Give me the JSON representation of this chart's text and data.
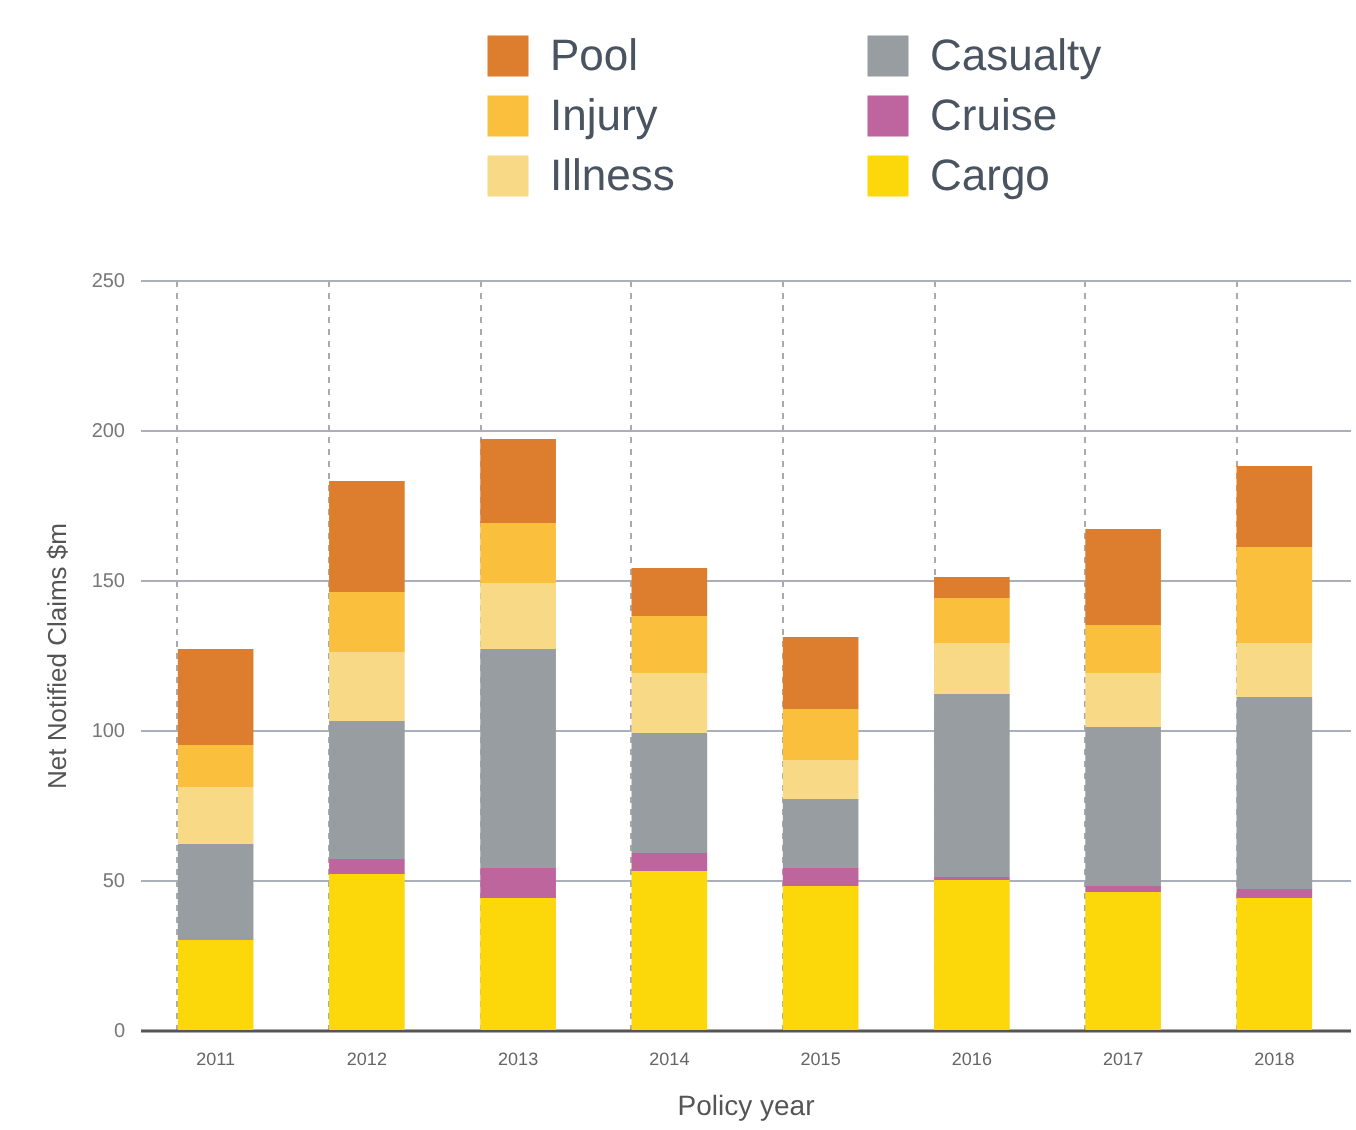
{
  "chart_data": {
    "type": "bar",
    "stacked": true,
    "xlabel": "Policy year",
    "ylabel": "Net Notified Claims $m",
    "categories": [
      "2011",
      "2012",
      "2013",
      "2014",
      "2015",
      "2016",
      "2017",
      "2018"
    ],
    "series": [
      {
        "name": "Cargo",
        "color": "#fcd80a",
        "values": [
          30,
          52,
          44,
          53,
          48,
          50,
          46,
          44
        ]
      },
      {
        "name": "Cruise",
        "color": "#bd659c",
        "values": [
          0,
          5,
          10,
          6,
          6,
          1,
          2,
          3
        ]
      },
      {
        "name": "Casualty",
        "color": "#979da1",
        "values": [
          32,
          46,
          73,
          40,
          23,
          61,
          53,
          64
        ]
      },
      {
        "name": "Illness",
        "color": "#f8d985",
        "values": [
          19,
          23,
          22,
          20,
          13,
          17,
          18,
          18
        ]
      },
      {
        "name": "Injury",
        "color": "#fbbf3e",
        "values": [
          14,
          20,
          20,
          19,
          17,
          15,
          16,
          32
        ]
      },
      {
        "name": "Pool",
        "color": "#dc7e2d",
        "values": [
          32,
          37,
          28,
          16,
          24,
          7,
          32,
          27
        ]
      }
    ],
    "ylim": [
      0,
      250
    ],
    "yticks": [
      0,
      50,
      100,
      150,
      200,
      250
    ],
    "grid": true,
    "legend": "top"
  }
}
